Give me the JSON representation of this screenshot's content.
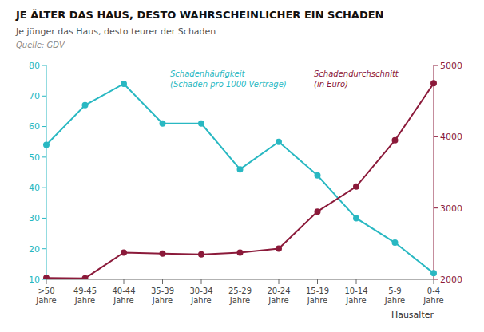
{
  "chart_data": {
    "type": "line",
    "title": "JE ÄLTER DAS HAUS, DESTO WAHRSCHEINLICHER EIN SCHADEN",
    "subtitle": "Je jünger das Haus, desto teurer der Schaden",
    "source": "Quelle: GDV",
    "xlabel": "Hausalter",
    "categories": [
      ">50\nJahre",
      "49-45\nJahre",
      "40-44\nJahre",
      "35-39\nJahre",
      "30-34\nJahre",
      "25-29\nJahre",
      "20-24\nJahre",
      "15-19\nJahre",
      "10-14\nJahre",
      "5-9\nJahre",
      "0-4\nJahre"
    ],
    "series": [
      {
        "name": "Schadenhäufigkeit",
        "color": "#29B8C2",
        "values": [
          54,
          67,
          74,
          61,
          61,
          46,
          55,
          44,
          30,
          22,
          12
        ]
      },
      {
        "name": "Schadendurchschnitt",
        "color": "#8B1A3A",
        "values": [
          2020,
          2015,
          2375,
          2360,
          2350,
          2375,
          2430,
          2950,
          3300,
          3950,
          4750
        ],
        "axis": "y2"
      }
    ],
    "annotations": [
      "(Schäden pro 1000 Verträge)",
      "(in Euro)"
    ],
    "ylim": [
      10,
      80
    ],
    "yticks": [
      10,
      20,
      30,
      40,
      50,
      60,
      70,
      80
    ],
    "y2lim": [
      2000,
      5000
    ],
    "y2ticks": [
      2000,
      3000,
      4000,
      5000
    ],
    "grid": false
  }
}
